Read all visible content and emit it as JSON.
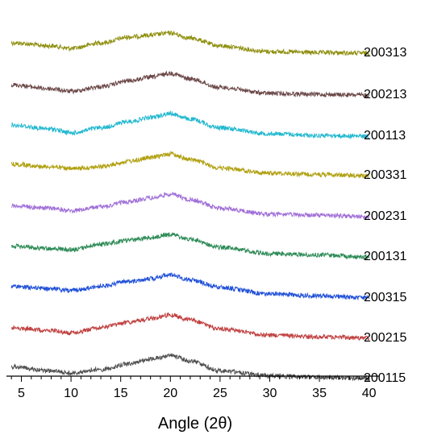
{
  "chart_data": {
    "type": "line",
    "xlabel": "Angle (2θ)",
    "ylabel": "",
    "xlim": [
      3.5,
      41
    ],
    "xticks": [
      5,
      10,
      15,
      20,
      25,
      30,
      35,
      40
    ],
    "grid": false,
    "legend": "labels at right end of each trace",
    "x_range": [
      4,
      40
    ],
    "series": [
      {
        "name": "200313",
        "color": "#8f8f10",
        "profile": [
          [
            4,
            0.62
          ],
          [
            8,
            0.5
          ],
          [
            10,
            0.4
          ],
          [
            13,
            0.62
          ],
          [
            16,
            0.85
          ],
          [
            18,
            0.92
          ],
          [
            20,
            1.0
          ],
          [
            22,
            0.8
          ],
          [
            25,
            0.5
          ],
          [
            30,
            0.28
          ],
          [
            35,
            0.24
          ],
          [
            40,
            0.22
          ]
        ]
      },
      {
        "name": "200213",
        "color": "#6b4747",
        "profile": [
          [
            4,
            0.55
          ],
          [
            8,
            0.4
          ],
          [
            10,
            0.3
          ],
          [
            13,
            0.48
          ],
          [
            16,
            0.72
          ],
          [
            18,
            0.85
          ],
          [
            20,
            1.0
          ],
          [
            22,
            0.78
          ],
          [
            25,
            0.45
          ],
          [
            30,
            0.22
          ],
          [
            35,
            0.18
          ],
          [
            40,
            0.15
          ]
        ]
      },
      {
        "name": "200113",
        "color": "#22b8cf",
        "profile": [
          [
            4,
            0.55
          ],
          [
            8,
            0.4
          ],
          [
            10,
            0.25
          ],
          [
            13,
            0.45
          ],
          [
            16,
            0.7
          ],
          [
            18,
            0.85
          ],
          [
            20,
            1.0
          ],
          [
            22,
            0.78
          ],
          [
            25,
            0.45
          ],
          [
            30,
            0.22
          ],
          [
            35,
            0.15
          ],
          [
            40,
            0.12
          ]
        ]
      },
      {
        "name": "200331",
        "color": "#b0a010",
        "profile": [
          [
            4,
            0.6
          ],
          [
            8,
            0.5
          ],
          [
            10,
            0.42
          ],
          [
            13,
            0.5
          ],
          [
            16,
            0.72
          ],
          [
            18,
            0.85
          ],
          [
            20,
            1.0
          ],
          [
            22,
            0.78
          ],
          [
            25,
            0.45
          ],
          [
            30,
            0.25
          ],
          [
            35,
            0.2
          ],
          [
            40,
            0.15
          ]
        ]
      },
      {
        "name": "200231",
        "color": "#a070d8",
        "profile": [
          [
            4,
            0.55
          ],
          [
            8,
            0.45
          ],
          [
            10,
            0.35
          ],
          [
            13,
            0.5
          ],
          [
            16,
            0.72
          ],
          [
            18,
            0.85
          ],
          [
            20,
            1.0
          ],
          [
            22,
            0.78
          ],
          [
            25,
            0.45
          ],
          [
            30,
            0.22
          ],
          [
            35,
            0.18
          ],
          [
            40,
            0.12
          ]
        ]
      },
      {
        "name": "200131",
        "color": "#2e8b57",
        "profile": [
          [
            4,
            0.55
          ],
          [
            8,
            0.45
          ],
          [
            10,
            0.4
          ],
          [
            13,
            0.62
          ],
          [
            16,
            0.78
          ],
          [
            18,
            0.88
          ],
          [
            20,
            1.0
          ],
          [
            22,
            0.8
          ],
          [
            25,
            0.5
          ],
          [
            30,
            0.25
          ],
          [
            35,
            0.2
          ],
          [
            40,
            0.12
          ]
        ]
      },
      {
        "name": "200315",
        "color": "#2050d8",
        "profile": [
          [
            4,
            0.55
          ],
          [
            8,
            0.45
          ],
          [
            10,
            0.38
          ],
          [
            13,
            0.55
          ],
          [
            16,
            0.75
          ],
          [
            18,
            0.85
          ],
          [
            20,
            1.0
          ],
          [
            22,
            0.8
          ],
          [
            25,
            0.5
          ],
          [
            30,
            0.25
          ],
          [
            35,
            0.18
          ],
          [
            40,
            0.1
          ]
        ]
      },
      {
        "name": "200215",
        "color": "#c04040",
        "profile": [
          [
            4,
            0.5
          ],
          [
            8,
            0.4
          ],
          [
            10,
            0.3
          ],
          [
            13,
            0.5
          ],
          [
            16,
            0.72
          ],
          [
            18,
            0.85
          ],
          [
            20,
            1.0
          ],
          [
            22,
            0.8
          ],
          [
            25,
            0.45
          ],
          [
            30,
            0.22
          ],
          [
            35,
            0.15
          ],
          [
            40,
            0.1
          ]
        ]
      },
      {
        "name": "200115",
        "color": "#505050",
        "profile": [
          [
            4,
            0.55
          ],
          [
            8,
            0.4
          ],
          [
            10,
            0.3
          ],
          [
            13,
            0.45
          ],
          [
            16,
            0.68
          ],
          [
            18,
            0.85
          ],
          [
            20,
            1.0
          ],
          [
            22,
            0.78
          ],
          [
            25,
            0.4
          ],
          [
            30,
            0.2
          ],
          [
            35,
            0.15
          ],
          [
            40,
            0.1
          ]
        ]
      }
    ]
  }
}
